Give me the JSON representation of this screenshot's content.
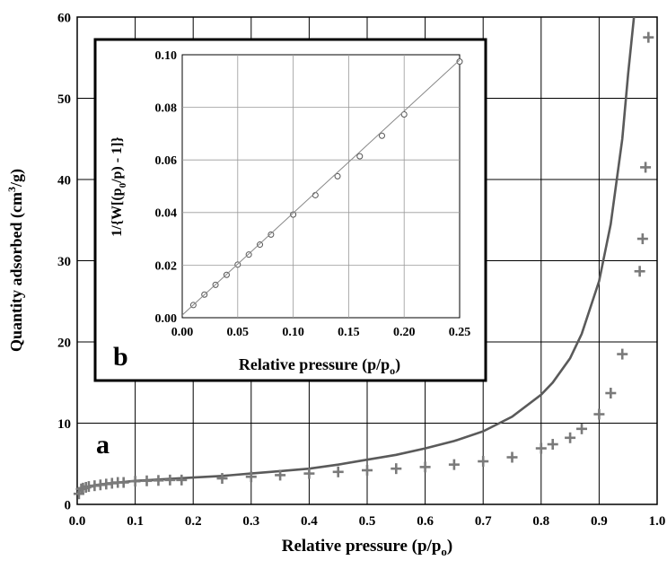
{
  "chart_data": [
    {
      "id": "a",
      "panel_label": "a",
      "type": "line+scatter",
      "xlabel": "Relative pressure (p/p",
      "xlabel_sub": "o",
      "xlabel_close": ")",
      "ylabel": "Quantity adsorbed (cm",
      "ylabel_sup": "3",
      "ylabel_end": "/g)",
      "xlim": [
        0,
        1.0
      ],
      "ylim": [
        0,
        60
      ],
      "xticks": [
        "0.0",
        "0.1",
        "0.2",
        "0.3",
        "0.4",
        "0.5",
        "0.6",
        "0.7",
        "0.8",
        "0.9",
        "1.0"
      ],
      "yticks": [
        "0",
        "10",
        "20",
        "30",
        "40",
        "50",
        "60"
      ],
      "grid": true,
      "series": [
        {
          "kind": "line",
          "color": "#5a5a5a",
          "x": [
            0.0,
            0.005,
            0.01,
            0.02,
            0.03,
            0.05,
            0.08,
            0.1,
            0.15,
            0.2,
            0.25,
            0.3,
            0.35,
            0.4,
            0.45,
            0.5,
            0.55,
            0.6,
            0.65,
            0.7,
            0.75,
            0.8,
            0.82,
            0.85,
            0.87,
            0.9,
            0.92,
            0.94,
            0.95,
            0.96,
            0.98
          ],
          "y": [
            1.4,
            1.8,
            2.0,
            2.2,
            2.35,
            2.55,
            2.75,
            2.9,
            3.1,
            3.3,
            3.5,
            3.8,
            4.1,
            4.4,
            4.9,
            5.5,
            6.1,
            6.9,
            7.8,
            9.0,
            10.8,
            13.5,
            15.0,
            18.0,
            21.0,
            27.5,
            34.5,
            45.0,
            53.0,
            60.0,
            62.0
          ]
        },
        {
          "kind": "scatter",
          "marker": "+",
          "color": "#7a7a7a",
          "x": [
            0.003,
            0.007,
            0.01,
            0.015,
            0.02,
            0.03,
            0.04,
            0.05,
            0.06,
            0.07,
            0.08,
            0.1,
            0.12,
            0.14,
            0.16,
            0.18,
            0.25,
            0.3,
            0.35,
            0.4,
            0.45,
            0.5,
            0.55,
            0.6,
            0.65,
            0.7,
            0.75,
            0.8,
            0.82,
            0.85,
            0.87,
            0.9,
            0.92,
            0.94,
            0.97,
            0.975,
            0.98,
            0.985
          ],
          "y": [
            1.3,
            1.9,
            2.0,
            2.1,
            2.2,
            2.3,
            2.4,
            2.5,
            2.6,
            2.7,
            2.7,
            2.85,
            2.9,
            2.95,
            3.0,
            3.0,
            3.2,
            3.4,
            3.6,
            3.8,
            4.0,
            4.2,
            4.4,
            4.6,
            4.9,
            5.3,
            5.8,
            6.9,
            7.4,
            8.2,
            9.3,
            11.1,
            13.7,
            18.5,
            28.7,
            32.7,
            41.5,
            57.5
          ]
        }
      ]
    },
    {
      "id": "b",
      "panel_label": "b",
      "type": "scatter+line",
      "xlabel": "Relative pressure (p/p",
      "xlabel_sub": "o",
      "xlabel_close": ")",
      "ylabel": "1/{W[(p",
      "ylabel_sub": "0",
      "ylabel_end": "/p) - 1]}",
      "xlim": [
        0,
        0.25
      ],
      "ylim": [
        0,
        0.1
      ],
      "xticks": [
        "0.00",
        "0.05",
        "0.10",
        "0.15",
        "0.20",
        "0.25"
      ],
      "yticks": [
        "0.00",
        "0.02",
        "0.04",
        "0.06",
        "0.08",
        "0.10"
      ],
      "grid": true,
      "series": [
        {
          "kind": "scatter",
          "marker": "o",
          "color": "#555555",
          "x": [
            0.01,
            0.02,
            0.03,
            0.04,
            0.05,
            0.06,
            0.07,
            0.08,
            0.1,
            0.12,
            0.14,
            0.16,
            0.18,
            0.2,
            0.25
          ],
          "y": [
            0.0048,
            0.0088,
            0.0125,
            0.0163,
            0.0202,
            0.024,
            0.0278,
            0.0316,
            0.0392,
            0.0466,
            0.0538,
            0.0614,
            0.0692,
            0.0773,
            0.0974
          ]
        },
        {
          "kind": "line",
          "color": "#888888",
          "x": [
            0.0,
            0.25
          ],
          "y": [
            0.001,
            0.098
          ]
        }
      ]
    }
  ]
}
